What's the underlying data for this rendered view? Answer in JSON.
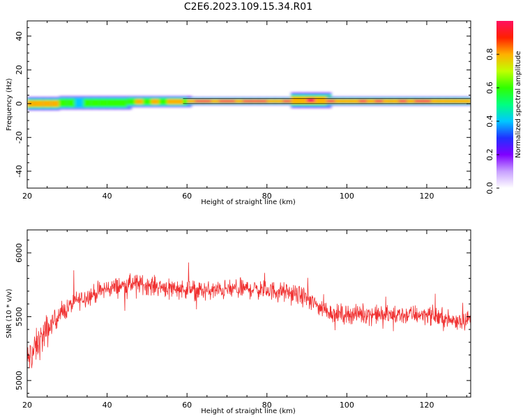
{
  "figure_title": "C2E6.2023.109.15.34.R01",
  "colors": {
    "snr_line": "#f03030",
    "background": "#ffffff"
  },
  "chart_data": [
    {
      "type": "heatmap",
      "title": "",
      "xlabel": "Height of straight line (km)",
      "ylabel": "Frequency (Hz)",
      "xlim": [
        20,
        131
      ],
      "ylim": [
        -50,
        49
      ],
      "x_ticks": [
        20,
        40,
        60,
        80,
        100,
        120
      ],
      "y_ticks": [
        -40,
        -20,
        0,
        20,
        40
      ],
      "colormap": "rainbow (violet to magenta)",
      "colorbar": {
        "label": "Normalized spectral amplitude",
        "range": [
          0,
          1
        ],
        "ticks": [
          "0.0",
          "0.2",
          "0.4",
          "0.6",
          "0.8"
        ],
        "stops": [
          "#ffffff",
          "#c8a0ff",
          "#8000ff",
          "#2030ff",
          "#00c8ff",
          "#00ff80",
          "#30ff00",
          "#c0ff00",
          "#ffb000",
          "#ff2000",
          "#ff1060"
        ]
      },
      "band_segments": [
        {
          "x_start": 20,
          "x_end": 28,
          "center_hz": 0,
          "half_width_hz": 3,
          "peak": 0.85
        },
        {
          "x_start": 28,
          "x_end": 45,
          "center_hz": 0.5,
          "half_width_hz": 3,
          "peak": 0.55
        },
        {
          "x_start": 45,
          "x_end": 60,
          "center_hz": 1.2,
          "half_width_hz": 2.5,
          "peak": 0.75
        },
        {
          "x_start": 60,
          "x_end": 86,
          "center_hz": 1.5,
          "half_width_hz": 1.8,
          "peak": 0.95
        },
        {
          "x_start": 86,
          "x_end": 95,
          "center_hz": 2,
          "half_width_hz": 3.5,
          "peak": 0.9
        },
        {
          "x_start": 95,
          "x_end": 131,
          "center_hz": 1.5,
          "half_width_hz": 2,
          "peak": 0.9
        }
      ]
    },
    {
      "type": "line",
      "title": "",
      "xlabel": "Height of straight line (km)",
      "ylabel": "SNR (10 * v/v)",
      "xlim": [
        20,
        131
      ],
      "ylim": [
        4870,
        6180
      ],
      "x_ticks": [
        20,
        40,
        60,
        80,
        100,
        120
      ],
      "y_ticks": [
        5000,
        5500,
        6000
      ],
      "trend": [
        {
          "x": 20,
          "y": 5150
        },
        {
          "x": 23,
          "y": 5300
        },
        {
          "x": 27,
          "y": 5480
        },
        {
          "x": 32,
          "y": 5620
        },
        {
          "x": 40,
          "y": 5720
        },
        {
          "x": 47,
          "y": 5760
        },
        {
          "x": 55,
          "y": 5730
        },
        {
          "x": 65,
          "y": 5700
        },
        {
          "x": 75,
          "y": 5720
        },
        {
          "x": 83,
          "y": 5700
        },
        {
          "x": 89,
          "y": 5660
        },
        {
          "x": 93,
          "y": 5580
        },
        {
          "x": 97,
          "y": 5520
        },
        {
          "x": 105,
          "y": 5520
        },
        {
          "x": 112,
          "y": 5510
        },
        {
          "x": 120,
          "y": 5520
        },
        {
          "x": 126,
          "y": 5470
        },
        {
          "x": 131,
          "y": 5480
        }
      ],
      "noise_amplitude": 110,
      "samples": 1400
    }
  ]
}
